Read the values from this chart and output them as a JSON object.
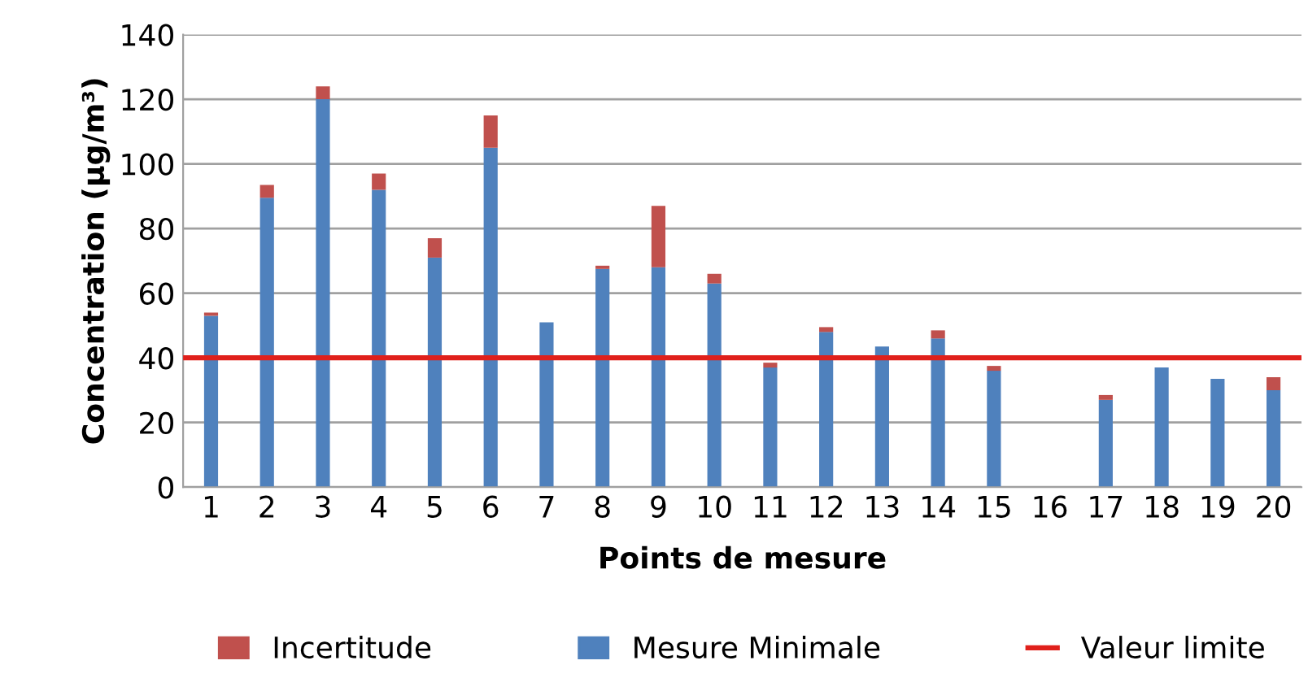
{
  "chart_data": {
    "type": "bar",
    "stacked": true,
    "xlabel": "Points de mesure",
    "ylabel": "Concentration (µg/m³)",
    "categories": [
      "1",
      "2",
      "3",
      "4",
      "5",
      "6",
      "7",
      "8",
      "9",
      "10",
      "11",
      "12",
      "13",
      "14",
      "15",
      "16",
      "17",
      "18",
      "19",
      "20"
    ],
    "series": [
      {
        "name": "Mesure Minimale",
        "color": "#4f81bd",
        "values": [
          53,
          89.5,
          120,
          92,
          71,
          105,
          51,
          67.5,
          68,
          63,
          37,
          48,
          43.5,
          46,
          36,
          null,
          27,
          37,
          33.5,
          30
        ]
      },
      {
        "name": "Incertitude",
        "color": "#c0504d",
        "values": [
          1,
          4,
          4,
          5,
          6,
          10,
          0,
          1,
          19,
          3,
          1.5,
          1.5,
          0,
          2.5,
          1.5,
          null,
          1.5,
          0,
          0,
          4
        ]
      }
    ],
    "ref_lines": [
      {
        "axis": "y",
        "value": 40,
        "label": "Valeur limite",
        "color": "#e0201b"
      }
    ],
    "ylim": [
      0,
      140
    ],
    "yticks": [
      0,
      20,
      40,
      60,
      80,
      100,
      120,
      140
    ],
    "grid": "y",
    "legend": "bottom"
  }
}
